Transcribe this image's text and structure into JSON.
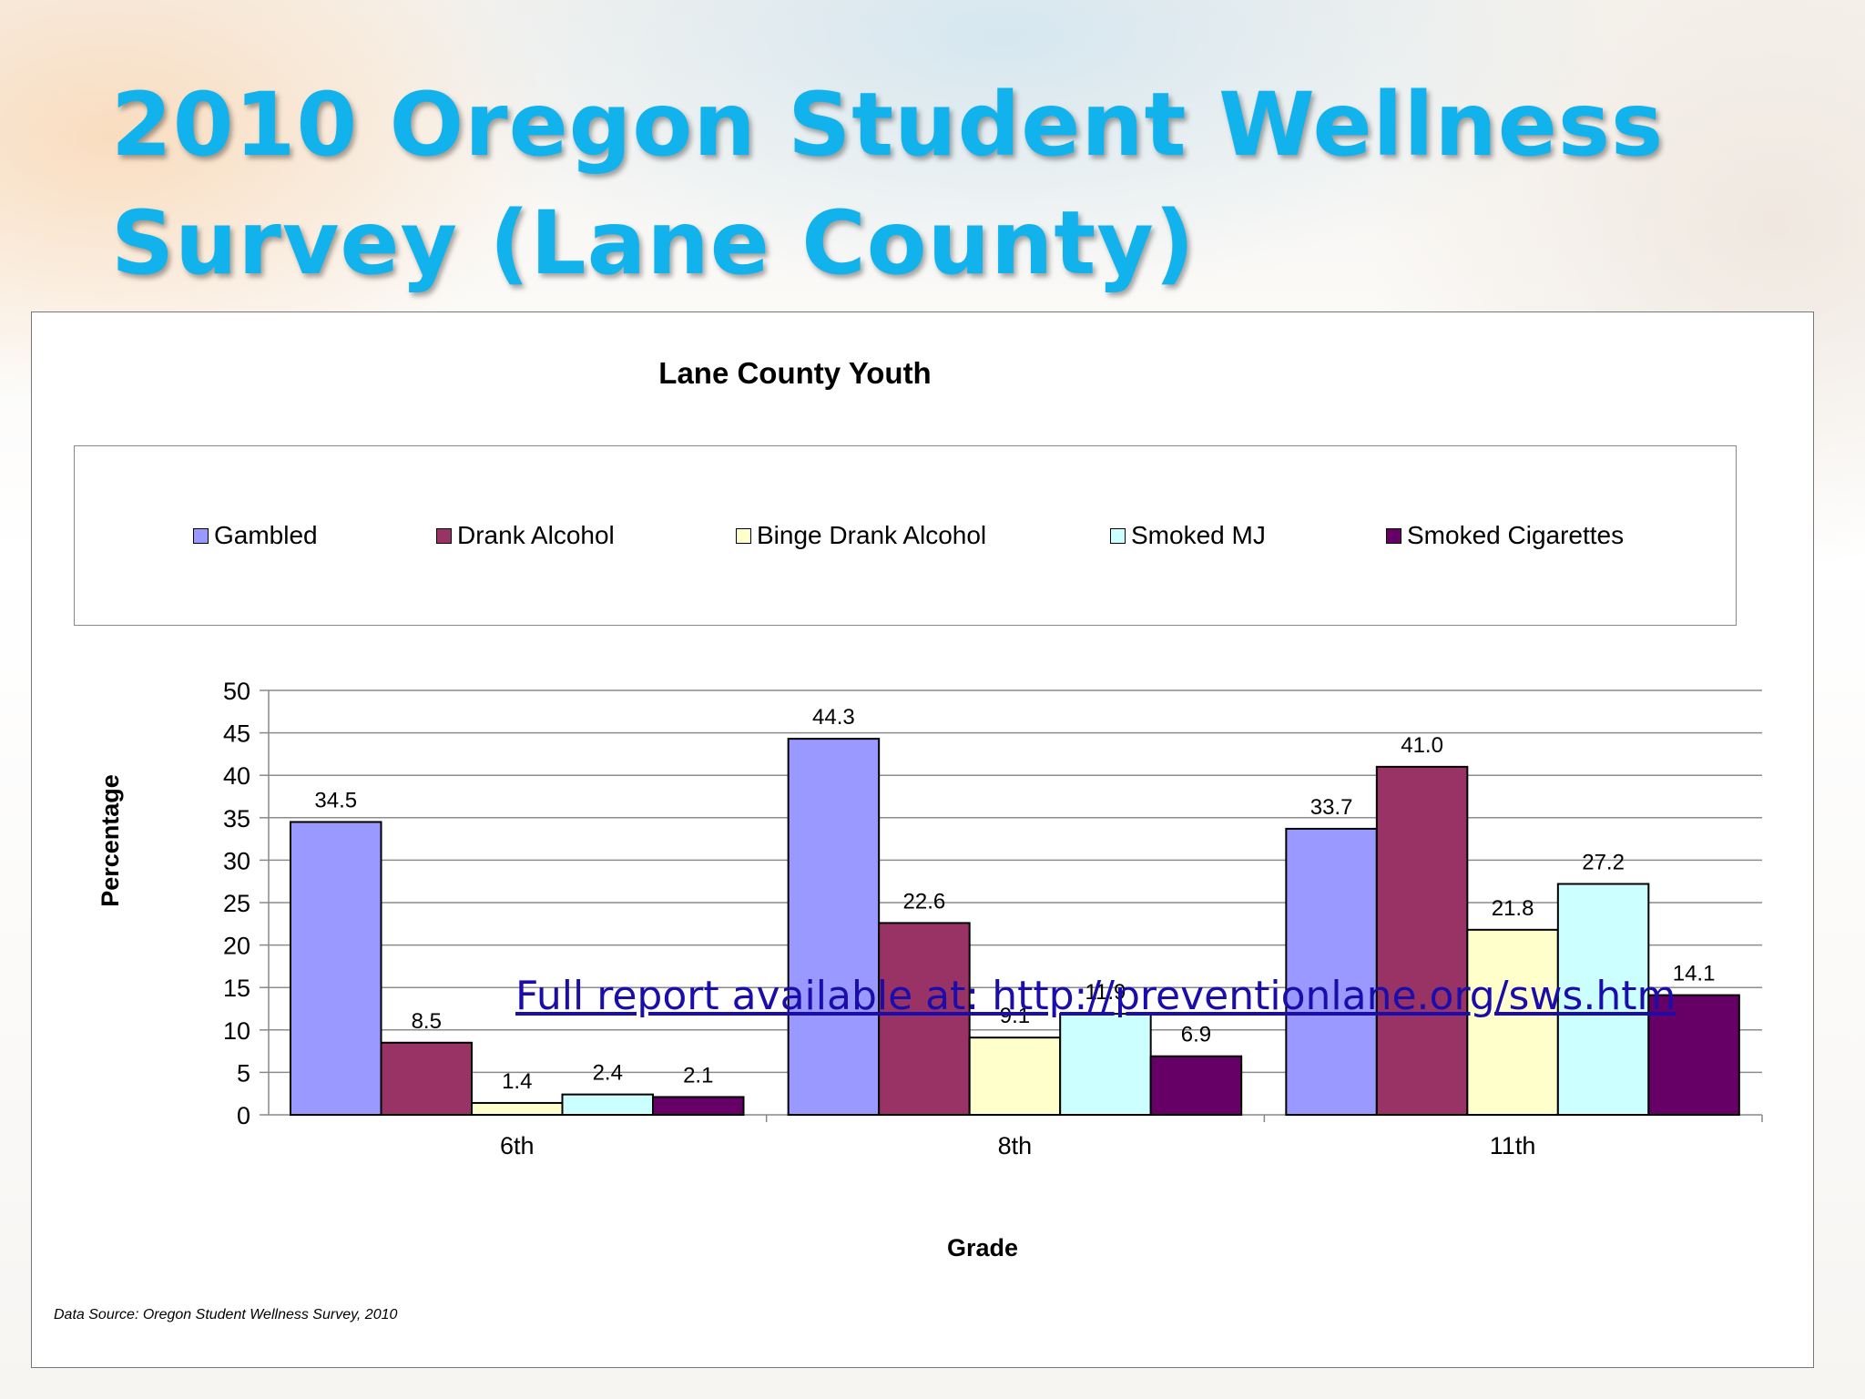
{
  "slide": {
    "title_line1": "2010 Oregon Student Wellness",
    "title_line2": "Survey (Lane County)"
  },
  "footer": {
    "data_source": "Data Source: Oregon Student Wellness Survey, 2010",
    "report_link": "Full report available at: http://preventionlane.org/sws.htm"
  },
  "chart_data": {
    "type": "bar",
    "title": "Lane County Youth",
    "xlabel": "Grade",
    "ylabel": "Percentage",
    "ylim": [
      0,
      50
    ],
    "yticks": [
      0,
      5,
      10,
      15,
      20,
      25,
      30,
      35,
      40,
      45,
      50
    ],
    "categories": [
      "6th",
      "8th",
      "11th"
    ],
    "legend_position": "top",
    "grid": true,
    "series": [
      {
        "name": "Gambled",
        "color": "#9999ff",
        "values": [
          34.5,
          44.3,
          33.7
        ],
        "labels": [
          "34.5",
          "44.3",
          "33.7"
        ]
      },
      {
        "name": "Drank Alcohol",
        "color": "#993366",
        "values": [
          8.5,
          22.6,
          41.0
        ],
        "labels": [
          "8.5",
          "22.6",
          "41.0"
        ]
      },
      {
        "name": "Binge Drank Alcohol",
        "color": "#ffffcc",
        "values": [
          1.4,
          9.1,
          21.8
        ],
        "labels": [
          "1.4",
          "9.1",
          "21.8"
        ]
      },
      {
        "name": "Smoked MJ",
        "color": "#ccffff",
        "values": [
          2.4,
          11.9,
          27.2
        ],
        "labels": [
          "2.4",
          "11.9",
          "27.2"
        ]
      },
      {
        "name": "Smoked Cigarettes",
        "color": "#660066",
        "values": [
          2.1,
          6.9,
          14.1
        ],
        "labels": [
          "2.1",
          "6.9",
          "14.1"
        ]
      }
    ]
  }
}
